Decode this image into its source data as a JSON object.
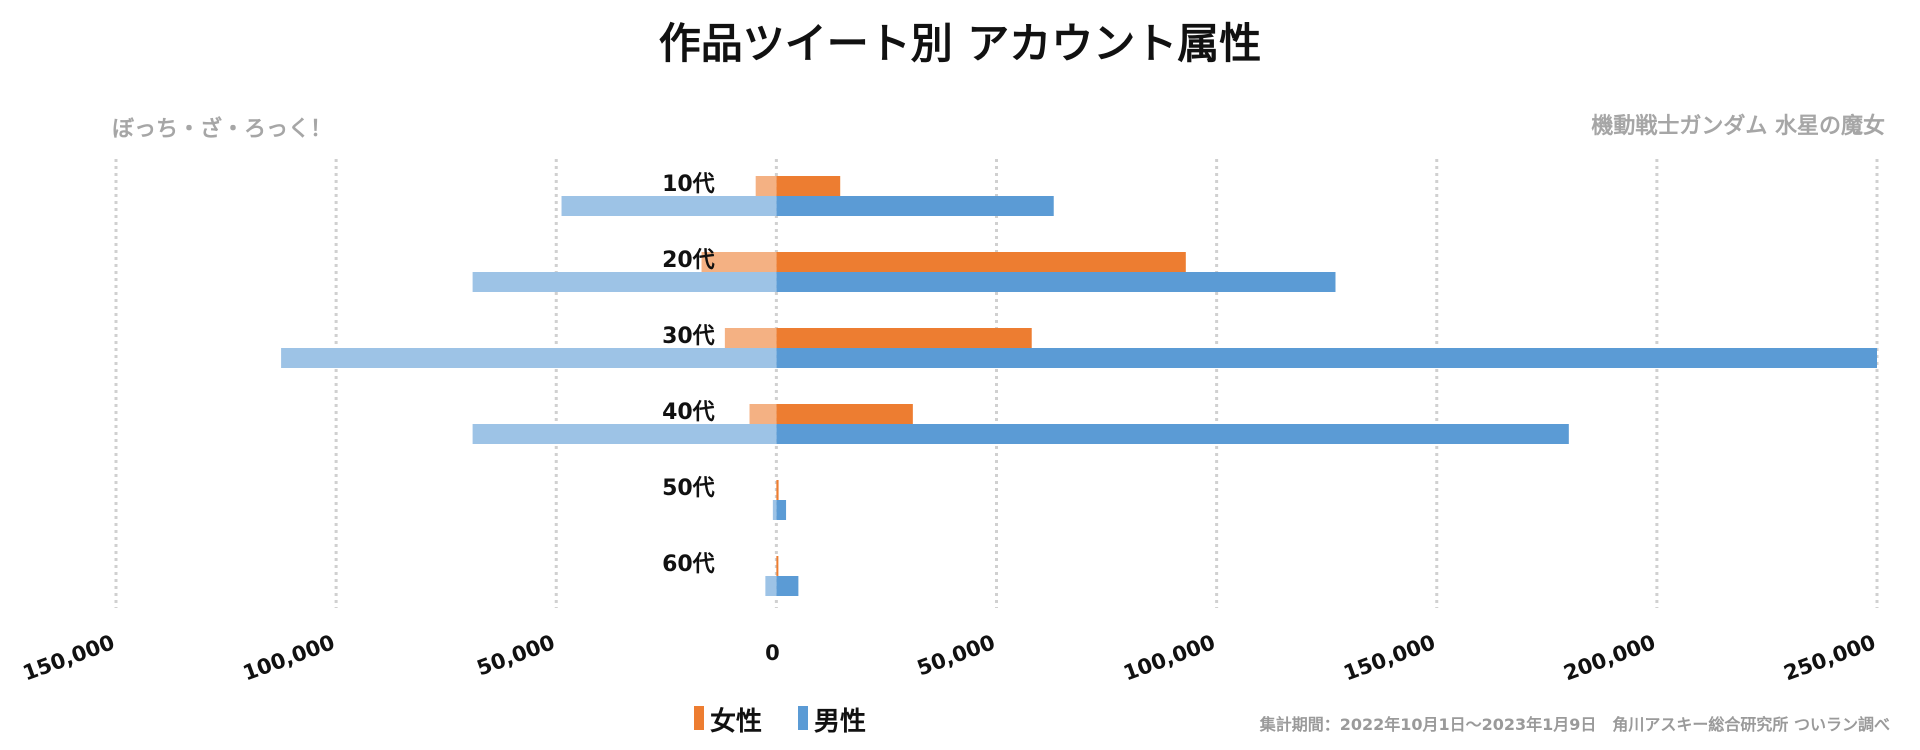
{
  "chart_data": {
    "type": "bar",
    "orientation": "horizontal-butterfly",
    "title": "作品ツイート別 アカウント属性",
    "left_label": "ぼっち・ざ・ろっく！",
    "right_label": "機動戦士ガンダム 水星の魔女",
    "categories": [
      "10代",
      "20代",
      "30代",
      "40代",
      "50代",
      "60代"
    ],
    "xlim": [
      -150000,
      250000
    ],
    "tick_values": [
      -150000,
      -100000,
      -50000,
      0,
      50000,
      100000,
      150000,
      200000,
      250000
    ],
    "tick_labels": [
      "150,000",
      "100,000",
      "50,000",
      "0",
      "50,000",
      "100,000",
      "150,000",
      "200,000",
      "250,000"
    ],
    "grid": true,
    "legend_position": "bottom",
    "series": [
      {
        "name": "女性",
        "side": "right",
        "work": "機動戦士ガンダム 水星の魔女",
        "color": "#ed7d31",
        "values": [
          14500,
          93000,
          58000,
          31000,
          500,
          300
        ]
      },
      {
        "name": "男性",
        "side": "right",
        "work": "機動戦士ガンダム 水星の魔女",
        "color": "#5b9bd5",
        "values": [
          63000,
          127000,
          250000,
          180000,
          2200,
          5000
        ]
      },
      {
        "name": "女性",
        "side": "left",
        "work": "ぼっち・ざ・ろっく！",
        "color": "#f4b183",
        "values": [
          4700,
          17000,
          11700,
          6100,
          0,
          0
        ]
      },
      {
        "name": "男性",
        "side": "left",
        "work": "ぼっち・ざ・ろっく！",
        "color": "#9dc3e6",
        "values": [
          48800,
          69000,
          112500,
          69000,
          800,
          2500
        ]
      }
    ],
    "legend": [
      {
        "label": "女性",
        "color": "#ed7d31"
      },
      {
        "label": "男性",
        "color": "#5b9bd5"
      }
    ],
    "footnote": "集計期間：2022年10月1日～2023年1月9日　角川アスキー総合研究所 ついラン調べ"
  }
}
